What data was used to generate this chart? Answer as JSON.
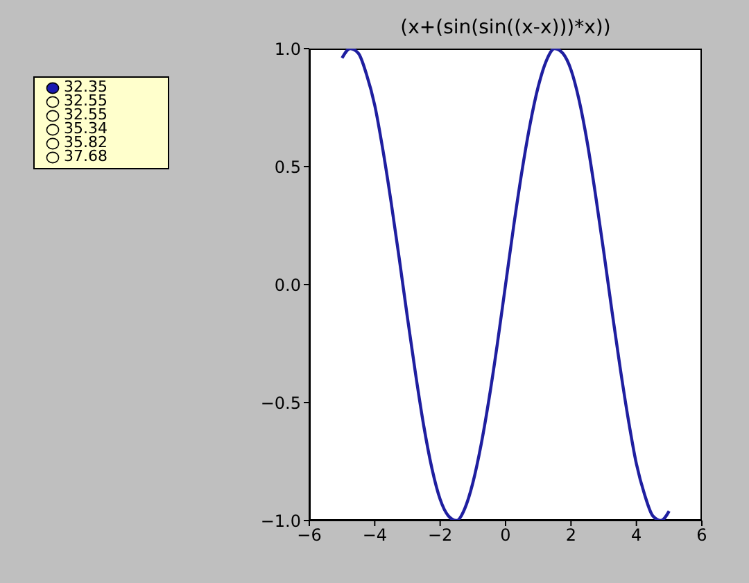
{
  "chart_data": {
    "type": "line",
    "title": "(x+(sin(sin((x-x)))*x))",
    "x": [
      -5,
      -4.75,
      -4.5,
      -4.25,
      -4,
      -3.75,
      -3.5,
      -3.25,
      -3,
      -2.75,
      -2.5,
      -2.25,
      -2,
      -1.75,
      -1.5,
      -1.25,
      -1,
      -0.75,
      -0.5,
      -0.25,
      0,
      0.25,
      0.5,
      0.75,
      1,
      1.25,
      1.5,
      1.75,
      2,
      2.25,
      2.5,
      2.75,
      3,
      3.25,
      3.5,
      3.75,
      4,
      4.25,
      4.5,
      4.75,
      5
    ],
    "series": [
      {
        "color": "#1f1fa0",
        "values": [
          0.96,
          1.0,
          0.98,
          0.89,
          0.76,
          0.57,
          0.35,
          0.11,
          -0.14,
          -0.38,
          -0.6,
          -0.78,
          -0.91,
          -0.98,
          -1.0,
          -0.95,
          -0.84,
          -0.68,
          -0.48,
          -0.25,
          0,
          0.25,
          0.48,
          0.68,
          0.84,
          0.95,
          1.0,
          0.98,
          0.91,
          0.78,
          0.6,
          0.38,
          0.14,
          -0.11,
          -0.35,
          -0.57,
          -0.76,
          -0.89,
          -0.98,
          -1.0,
          -0.96
        ]
      }
    ],
    "xlim": [
      -6,
      6
    ],
    "xticks": [
      -6,
      -4,
      -2,
      0,
      2,
      4,
      6
    ],
    "ylim": [
      -1,
      1
    ],
    "yticks": [
      {
        "value": -1,
        "label": "−1.0"
      },
      {
        "value": -0.5,
        "label": "−0.5"
      },
      {
        "value": 0,
        "label": "0.0"
      },
      {
        "value": 0.5,
        "label": "0.5"
      },
      {
        "value": 1,
        "label": "1.0"
      }
    ],
    "annotations": [
      "32.35",
      "32.55",
      "32.55",
      "35.34",
      "35.82",
      "37.68"
    ],
    "marker": "none",
    "line_style": "solid"
  }
}
